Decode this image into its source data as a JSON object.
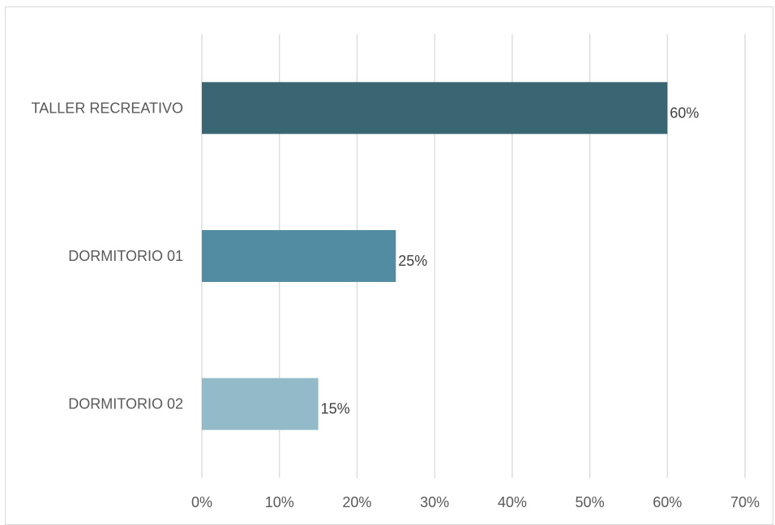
{
  "chart_data": {
    "type": "bar",
    "orientation": "horizontal",
    "categories": [
      "TALLER RECREATIVO",
      "DORMITORIO 01",
      "DORMITORIO 02"
    ],
    "values": [
      60,
      25,
      15
    ],
    "value_labels": [
      "60%",
      "25%",
      "15%"
    ],
    "colors": [
      "#3a6674",
      "#528ca3",
      "#92bac8"
    ],
    "xlim": [
      0,
      70
    ],
    "xticks": [
      0,
      10,
      20,
      30,
      40,
      50,
      60,
      70
    ],
    "xtick_labels": [
      "0%",
      "10%",
      "20%",
      "30%",
      "40%",
      "50%",
      "60%",
      "70%"
    ],
    "grid": "vertical",
    "legend": "none",
    "title": "",
    "xlabel": "",
    "ylabel": ""
  }
}
